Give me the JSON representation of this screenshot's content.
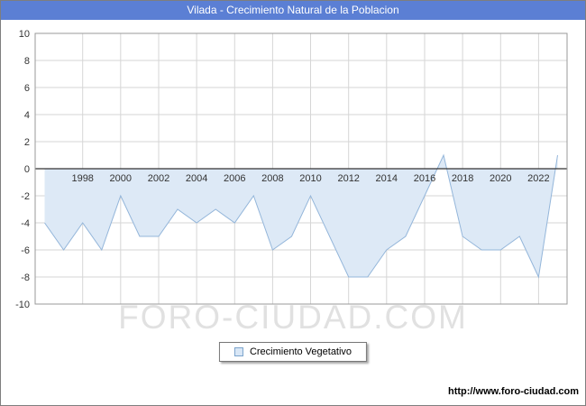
{
  "title": "Vilada - Crecimiento Natural de la Poblacion",
  "watermark": "FORO-CIUDAD.COM",
  "footer_url": "http://www.foro-ciudad.com",
  "legend": {
    "label": "Crecimiento Vegetativo"
  },
  "colors": {
    "title_bar": "#5b7fd4",
    "line": "#94b6da",
    "fill": "#dde9f6",
    "grid": "#d6d6d6",
    "zero_line": "#333333",
    "plot_border": "#9a9a9a",
    "axis_text": "#333333",
    "legend_marker_fill": "#d9e7f6",
    "legend_marker_border": "#7ba3cc"
  },
  "chart_data": {
    "type": "area",
    "title": "Vilada - Crecimiento Natural de la Poblacion",
    "xlabel": "",
    "ylabel": "",
    "x": [
      1996,
      1997,
      1998,
      1999,
      2000,
      2001,
      2002,
      2003,
      2004,
      2005,
      2006,
      2007,
      2008,
      2009,
      2010,
      2011,
      2012,
      2013,
      2014,
      2015,
      2016,
      2017,
      2018,
      2019,
      2020,
      2021,
      2022,
      2023
    ],
    "series": [
      {
        "name": "Crecimiento Vegetativo",
        "values": [
          -4,
          -6,
          -4,
          -6,
          -2,
          -5,
          -5,
          -3,
          -4,
          -3,
          -4,
          -2,
          -6,
          -5,
          -2,
          -5,
          -8,
          -8,
          -6,
          -5,
          -2,
          1,
          -5,
          -6,
          -6,
          -5,
          -8,
          1
        ]
      }
    ],
    "ylim": [
      -10,
      10
    ],
    "ytick_step": 2,
    "xticks": [
      1998,
      2000,
      2002,
      2004,
      2006,
      2008,
      2010,
      2012,
      2014,
      2016,
      2018,
      2020,
      2022
    ],
    "grid": true,
    "legend_position": "bottom"
  }
}
